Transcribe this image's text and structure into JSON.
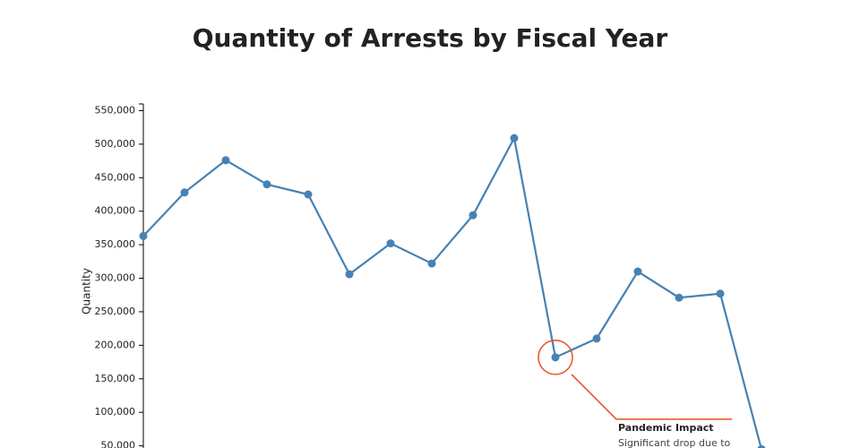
{
  "chart_data": {
    "type": "line",
    "title": "Quantity of Arrests by Fiscal Year",
    "y_label": "Quantity",
    "values": [
      363000,
      428000,
      476000,
      440000,
      425000,
      306000,
      352000,
      322000,
      394000,
      509000,
      182000,
      210000,
      310000,
      271000,
      277000,
      45000
    ],
    "color": "#4682b4",
    "ylim": [
      0,
      560000
    ],
    "yticks": [
      {
        "value": 50000,
        "label": "50,000"
      },
      {
        "value": 100000,
        "label": "100,000"
      },
      {
        "value": 150000,
        "label": "150,000"
      },
      {
        "value": 200000,
        "label": "200,000"
      },
      {
        "value": 250000,
        "label": "250,000"
      },
      {
        "value": 300000,
        "label": "300,000"
      },
      {
        "value": 350000,
        "label": "350,000"
      },
      {
        "value": 400000,
        "label": "400,000"
      },
      {
        "value": 450000,
        "label": "450,000"
      },
      {
        "value": 500000,
        "label": "500,000"
      },
      {
        "value": 550000,
        "label": "550,000"
      }
    ],
    "annotation": {
      "title": "Pandemic Impact",
      "text": "Significant drop due to",
      "color": "#e8501e"
    }
  }
}
